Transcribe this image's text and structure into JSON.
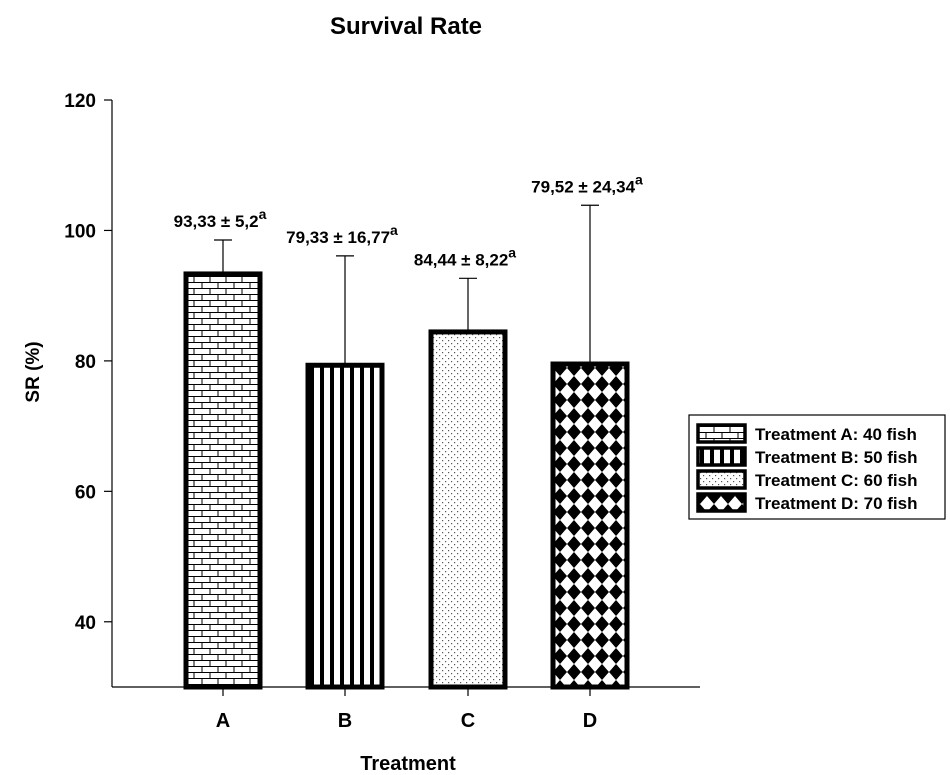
{
  "chart_data": {
    "type": "bar",
    "title": "Survival Rate",
    "xlabel": "Treatment",
    "ylabel": "SR (%)",
    "categories": [
      "A",
      "B",
      "C",
      "D"
    ],
    "values": [
      93.33,
      79.33,
      84.44,
      79.52
    ],
    "errors": [
      5.2,
      16.77,
      8.22,
      24.34
    ],
    "data_labels": [
      {
        "text": "93,33 ± 5,2",
        "sup": "a"
      },
      {
        "text": "79,33 ± 16,77",
        "sup": "a"
      },
      {
        "text": "84,44 ± 8,22",
        "sup": "a"
      },
      {
        "text": "79,52 ± 24,34",
        "sup": "a"
      }
    ],
    "ylim": [
      30,
      120
    ],
    "yticks": [
      40,
      60,
      80,
      100,
      120
    ],
    "grid": false,
    "legend_position": "right",
    "legend": [
      {
        "label": "Treatment A: 40 fish",
        "pattern": "brick"
      },
      {
        "label": "Treatment B: 50 fish",
        "pattern": "vertical-stripes"
      },
      {
        "label": "Treatment C: 60 fish",
        "pattern": "dots"
      },
      {
        "label": "Treatment D: 70 fish",
        "pattern": "diamonds"
      }
    ],
    "bar_patterns": [
      "brick",
      "vertical-stripes",
      "dots",
      "diamonds"
    ],
    "colors": {
      "ink": "#000000",
      "background": "#ffffff"
    }
  }
}
